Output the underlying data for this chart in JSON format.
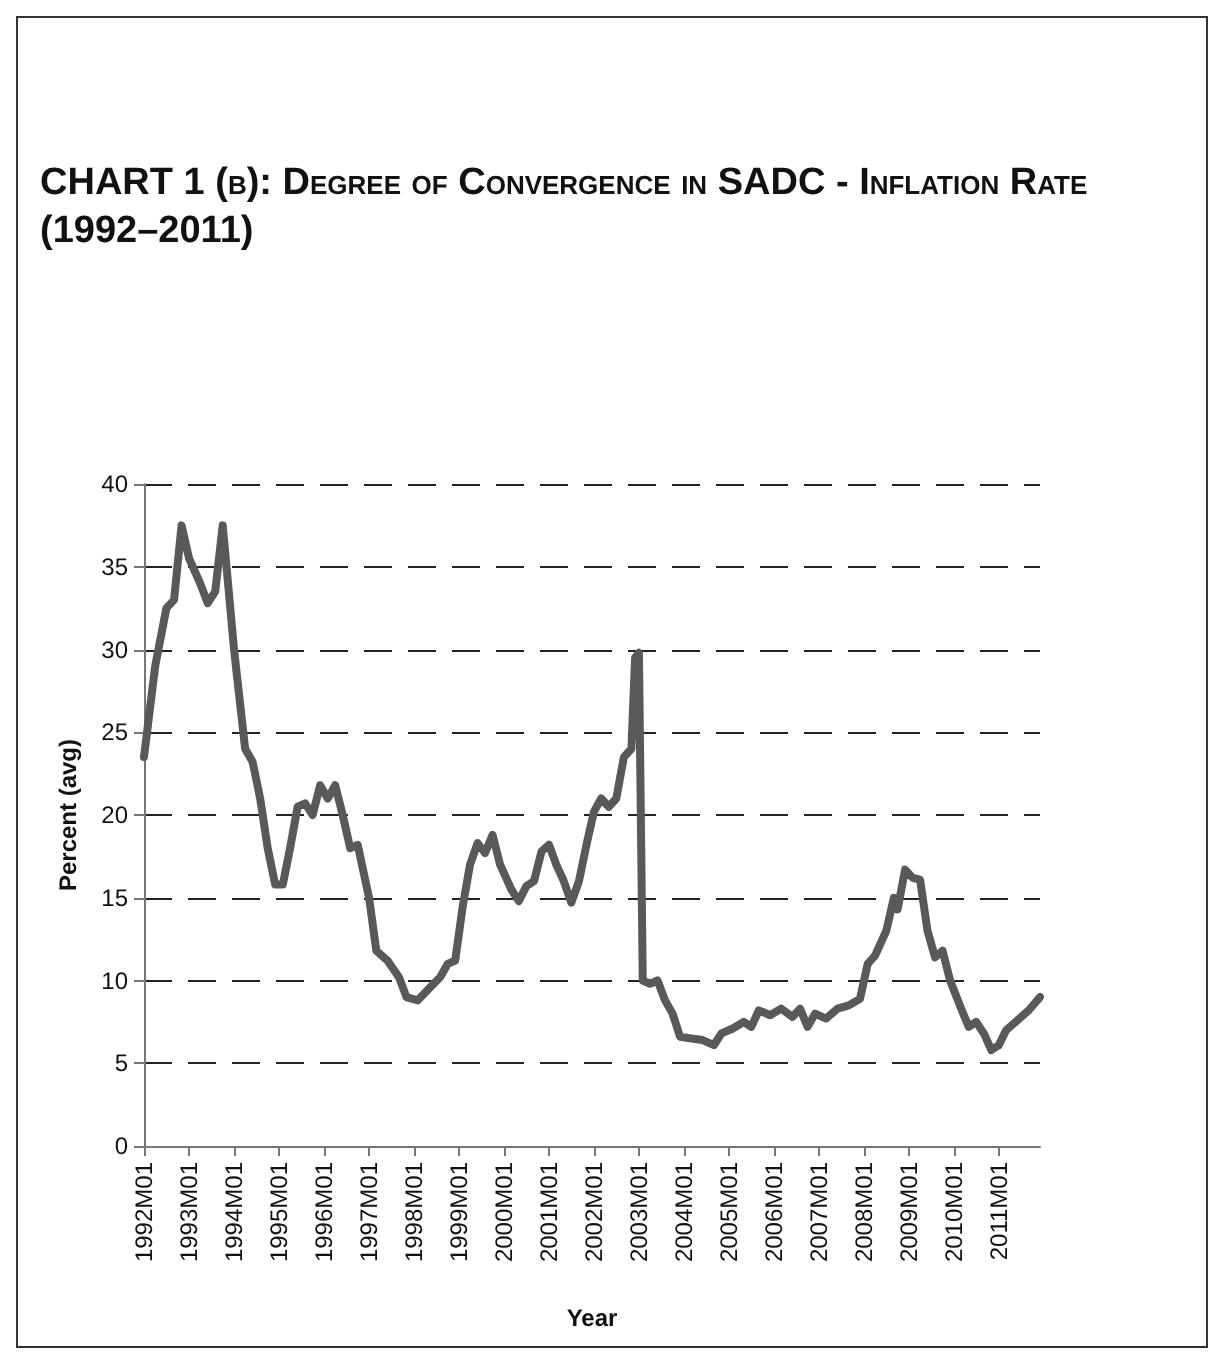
{
  "chart_data": {
    "type": "line",
    "title": "CHART 1 (b): Degree of Convergence in SADC - Inflation Rate (1992–2011)",
    "xlabel": "Year",
    "ylabel": "Percent (avg)",
    "x": [
      "1992-01",
      "1992-04",
      "1992-07",
      "1992-09",
      "1992-11",
      "1993-01",
      "1993-04",
      "1993-06",
      "1993-08",
      "1993-10",
      "1993-11",
      "1994-01",
      "1994-04",
      "1994-06",
      "1994-08",
      "1994-10",
      "1994-12",
      "1995-02",
      "1995-04",
      "1995-06",
      "1995-08",
      "1995-10",
      "1995-12",
      "1996-02",
      "1996-04",
      "1996-06",
      "1996-08",
      "1996-10",
      "1997-01",
      "1997-03",
      "1997-06",
      "1997-09",
      "1997-11",
      "1998-02",
      "1998-05",
      "1998-08",
      "1998-10",
      "1998-12",
      "1999-02",
      "1999-04",
      "1999-06",
      "1999-08",
      "1999-10",
      "1999-12",
      "2000-03",
      "2000-05",
      "2000-07",
      "2000-09",
      "2000-11",
      "2001-01",
      "2001-03",
      "2001-05",
      "2001-07",
      "2001-09",
      "2001-11",
      "2002-01",
      "2002-03",
      "2002-05",
      "2002-07",
      "2002-09",
      "2002-11",
      "2002-12",
      "2003-01",
      "2003-02",
      "2003-04",
      "2003-06",
      "2003-08",
      "2003-10",
      "2003-12",
      "2004-03",
      "2004-06",
      "2004-09",
      "2004-11",
      "2005-02",
      "2005-05",
      "2005-07",
      "2005-09",
      "2005-12",
      "2006-03",
      "2006-06",
      "2006-08",
      "2006-10",
      "2006-12",
      "2007-03",
      "2007-06",
      "2007-09",
      "2007-12",
      "2008-02",
      "2008-04",
      "2008-07",
      "2008-09",
      "2008-10",
      "2008-12",
      "2009-02",
      "2009-04",
      "2009-06",
      "2009-08",
      "2009-10",
      "2009-12",
      "2010-03",
      "2010-05",
      "2010-07",
      "2010-09",
      "2010-11",
      "2011-01",
      "2011-03",
      "2011-06",
      "2011-09",
      "2011-12"
    ],
    "series": [
      {
        "color": "#595959",
        "values": [
          23.5,
          29,
          32.5,
          33,
          37.5,
          35.5,
          34,
          32.8,
          33.5,
          37.5,
          35,
          30,
          24,
          23.2,
          21,
          18,
          15.8,
          15.8,
          18,
          20.5,
          20.7,
          20,
          21.8,
          21,
          21.8,
          20,
          18,
          18.2,
          15,
          11.8,
          11.2,
          10.2,
          9,
          8.8,
          9.5,
          10.2,
          11,
          11.2,
          14.5,
          17,
          18.3,
          17.7,
          18.8,
          17,
          15.5,
          14.8,
          15.7,
          16,
          17.8,
          18.2,
          17,
          16,
          14.7,
          16,
          18.2,
          20.2,
          21,
          20.5,
          21,
          23.5,
          24,
          29.5,
          29.8,
          10,
          9.8,
          10,
          8.8,
          8,
          6.6,
          6.5,
          6.4,
          6.1,
          6.8,
          7.1,
          7.5,
          7.2,
          8.2,
          7.9,
          8.3,
          7.8,
          8.3,
          7.2,
          8,
          7.7,
          8.3,
          8.5,
          8.9,
          11,
          11.5,
          13,
          15,
          14.3,
          16.7,
          16.2,
          16.1,
          13,
          11.4,
          11.8,
          10,
          8.3,
          7.2,
          7.5,
          6.8,
          5.8,
          6.1,
          7,
          7.6,
          8.2,
          9
        ]
      }
    ],
    "xlim": [
      "1992-01",
      "2011-12"
    ],
    "xticks": [
      {
        "value": "1992-01",
        "label": "1992M01"
      },
      {
        "value": "1993-01",
        "label": "1993M01"
      },
      {
        "value": "1994-01",
        "label": "1994M01"
      },
      {
        "value": "1995-01",
        "label": "1995M01"
      },
      {
        "value": "1996-01",
        "label": "1996M01"
      },
      {
        "value": "1997-01",
        "label": "1997M01"
      },
      {
        "value": "1998-01",
        "label": "1998M01"
      },
      {
        "value": "1999-01",
        "label": "1999M01"
      },
      {
        "value": "2000-01",
        "label": "2000M01"
      },
      {
        "value": "2001-01",
        "label": "2001M01"
      },
      {
        "value": "2002-01",
        "label": "2002M01"
      },
      {
        "value": "2003-01",
        "label": "2003M01"
      },
      {
        "value": "2004-01",
        "label": "2004M01"
      },
      {
        "value": "2005-01",
        "label": "2005M01"
      },
      {
        "value": "2006-01",
        "label": "2006M01"
      },
      {
        "value": "2007-01",
        "label": "2007M01"
      },
      {
        "value": "2008-01",
        "label": "2008M01"
      },
      {
        "value": "2009-01",
        "label": "2009M01"
      },
      {
        "value": "2010-01",
        "label": "2010M01"
      },
      {
        "value": "2011-01",
        "label": "2011M01"
      }
    ],
    "ylim": [
      0,
      40
    ],
    "yticks": [
      0,
      5,
      10,
      15,
      20,
      25,
      30,
      35,
      40
    ],
    "grid": "y",
    "marker": "none",
    "line_style": "solid"
  }
}
